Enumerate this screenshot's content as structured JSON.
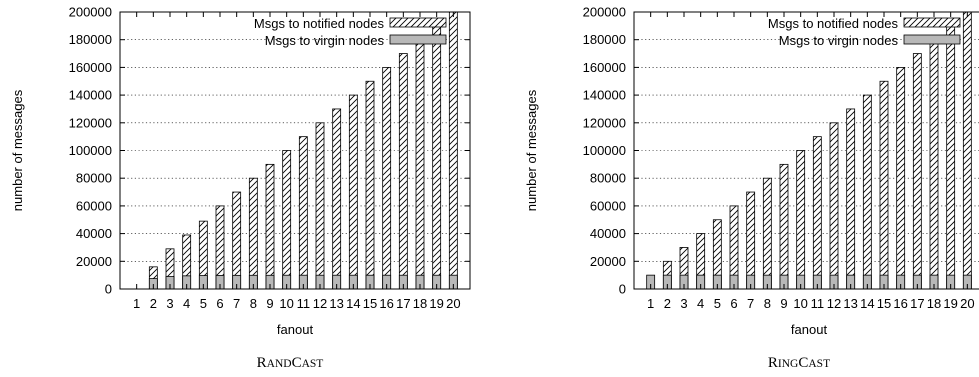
{
  "chart_data": [
    {
      "type": "bar",
      "caption": "RandCast",
      "caption_first": [
        "R",
        "C"
      ],
      "caption_rest": [
        "AND",
        "AST"
      ],
      "xlabel": "fanout",
      "ylabel": "number of messages",
      "categories": [
        "1",
        "2",
        "3",
        "4",
        "5",
        "6",
        "7",
        "8",
        "9",
        "10",
        "11",
        "12",
        "13",
        "14",
        "15",
        "16",
        "17",
        "18",
        "19",
        "20"
      ],
      "ylim": [
        0,
        200000
      ],
      "yticks": [
        0,
        20000,
        40000,
        60000,
        80000,
        100000,
        120000,
        140000,
        160000,
        180000,
        200000
      ],
      "grid": true,
      "legend_position": "top-right",
      "series": [
        {
          "name": "Msgs to notified nodes",
          "pattern": "hatched",
          "values": [
            0,
            16000,
            29000,
            39000,
            49000,
            60000,
            70000,
            80000,
            90000,
            100000,
            110000,
            120000,
            130000,
            140000,
            150000,
            160000,
            170000,
            180000,
            190000,
            200000
          ]
        },
        {
          "name": "Msgs to virgin nodes",
          "pattern": "gray",
          "values": [
            0,
            7500,
            9000,
            9500,
            9700,
            9800,
            9850,
            9900,
            9900,
            9950,
            9950,
            9950,
            9950,
            9950,
            9950,
            9950,
            9950,
            9950,
            9950,
            9950
          ]
        }
      ]
    },
    {
      "type": "bar",
      "caption": "RingCast",
      "caption_first": [
        "R",
        "C"
      ],
      "caption_rest": [
        "ING",
        "AST"
      ],
      "xlabel": "fanout",
      "ylabel": "number of messages",
      "categories": [
        "1",
        "2",
        "3",
        "4",
        "5",
        "6",
        "7",
        "8",
        "9",
        "10",
        "11",
        "12",
        "13",
        "14",
        "15",
        "16",
        "17",
        "18",
        "19",
        "20"
      ],
      "ylim": [
        0,
        200000
      ],
      "yticks": [
        0,
        20000,
        40000,
        60000,
        80000,
        100000,
        120000,
        140000,
        160000,
        180000,
        200000
      ],
      "grid": true,
      "legend_position": "top-right",
      "series": [
        {
          "name": "Msgs to notified nodes",
          "pattern": "hatched",
          "values": [
            0,
            20000,
            30000,
            40000,
            50000,
            60000,
            70000,
            80000,
            90000,
            100000,
            110000,
            120000,
            130000,
            140000,
            150000,
            160000,
            170000,
            180000,
            190000,
            200000
          ]
        },
        {
          "name": "Msgs to virgin nodes",
          "pattern": "gray",
          "values": [
            10000,
            10000,
            10000,
            10000,
            10000,
            10000,
            10000,
            10000,
            10000,
            10000,
            10000,
            10000,
            10000,
            10000,
            10000,
            10000,
            10000,
            10000,
            10000,
            10000
          ]
        }
      ]
    }
  ]
}
